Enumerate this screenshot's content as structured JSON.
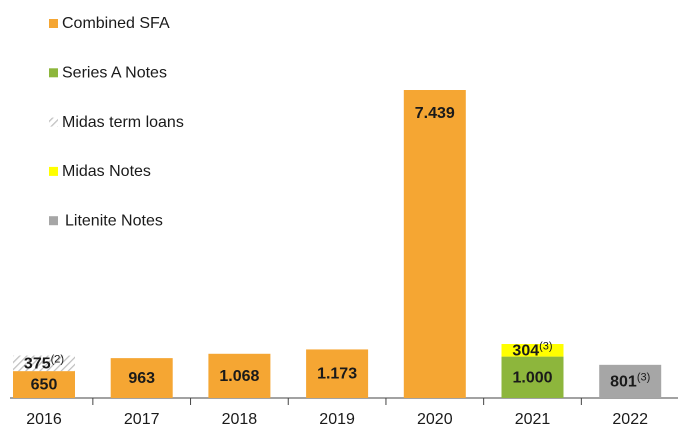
{
  "chart_data": {
    "type": "stacked_bar",
    "categories": [
      "2016",
      "2017",
      "2018",
      "2019",
      "2020",
      "2021",
      "2022"
    ],
    "legend": "top-left",
    "series": [
      {
        "name": "Combined SFA",
        "color": "#f5a633",
        "values": [
          650,
          963,
          1068,
          1173,
          7439,
          null,
          null
        ],
        "value_labels": [
          "650",
          "963",
          "1.068",
          "1.173",
          "7.439",
          null,
          null
        ]
      },
      {
        "name": "Series A Notes",
        "color": "#8db63c",
        "values": [
          null,
          null,
          null,
          null,
          null,
          1000,
          null
        ],
        "value_labels": [
          null,
          null,
          null,
          null,
          null,
          "1.000",
          null
        ]
      },
      {
        "name": "Midas term loans",
        "color": "#bfbfbf",
        "pattern": "hatch",
        "values": [
          375,
          null,
          null,
          null,
          null,
          null,
          null
        ],
        "label_notes": [
          "(2)",
          null,
          null,
          null,
          null,
          null,
          null
        ]
      },
      {
        "name": "Midas Notes",
        "color": "#ffff00",
        "values": [
          null,
          null,
          null,
          null,
          null,
          304,
          null
        ],
        "label_notes": [
          null,
          null,
          null,
          null,
          null,
          "(3)",
          null
        ]
      },
      {
        "name": "Litenite Notes",
        "color": "#a6a6a6",
        "values": [
          null,
          null,
          null,
          null,
          null,
          null,
          801
        ],
        "label_notes": [
          null,
          null,
          null,
          null,
          null,
          null,
          "(3)"
        ]
      }
    ]
  }
}
